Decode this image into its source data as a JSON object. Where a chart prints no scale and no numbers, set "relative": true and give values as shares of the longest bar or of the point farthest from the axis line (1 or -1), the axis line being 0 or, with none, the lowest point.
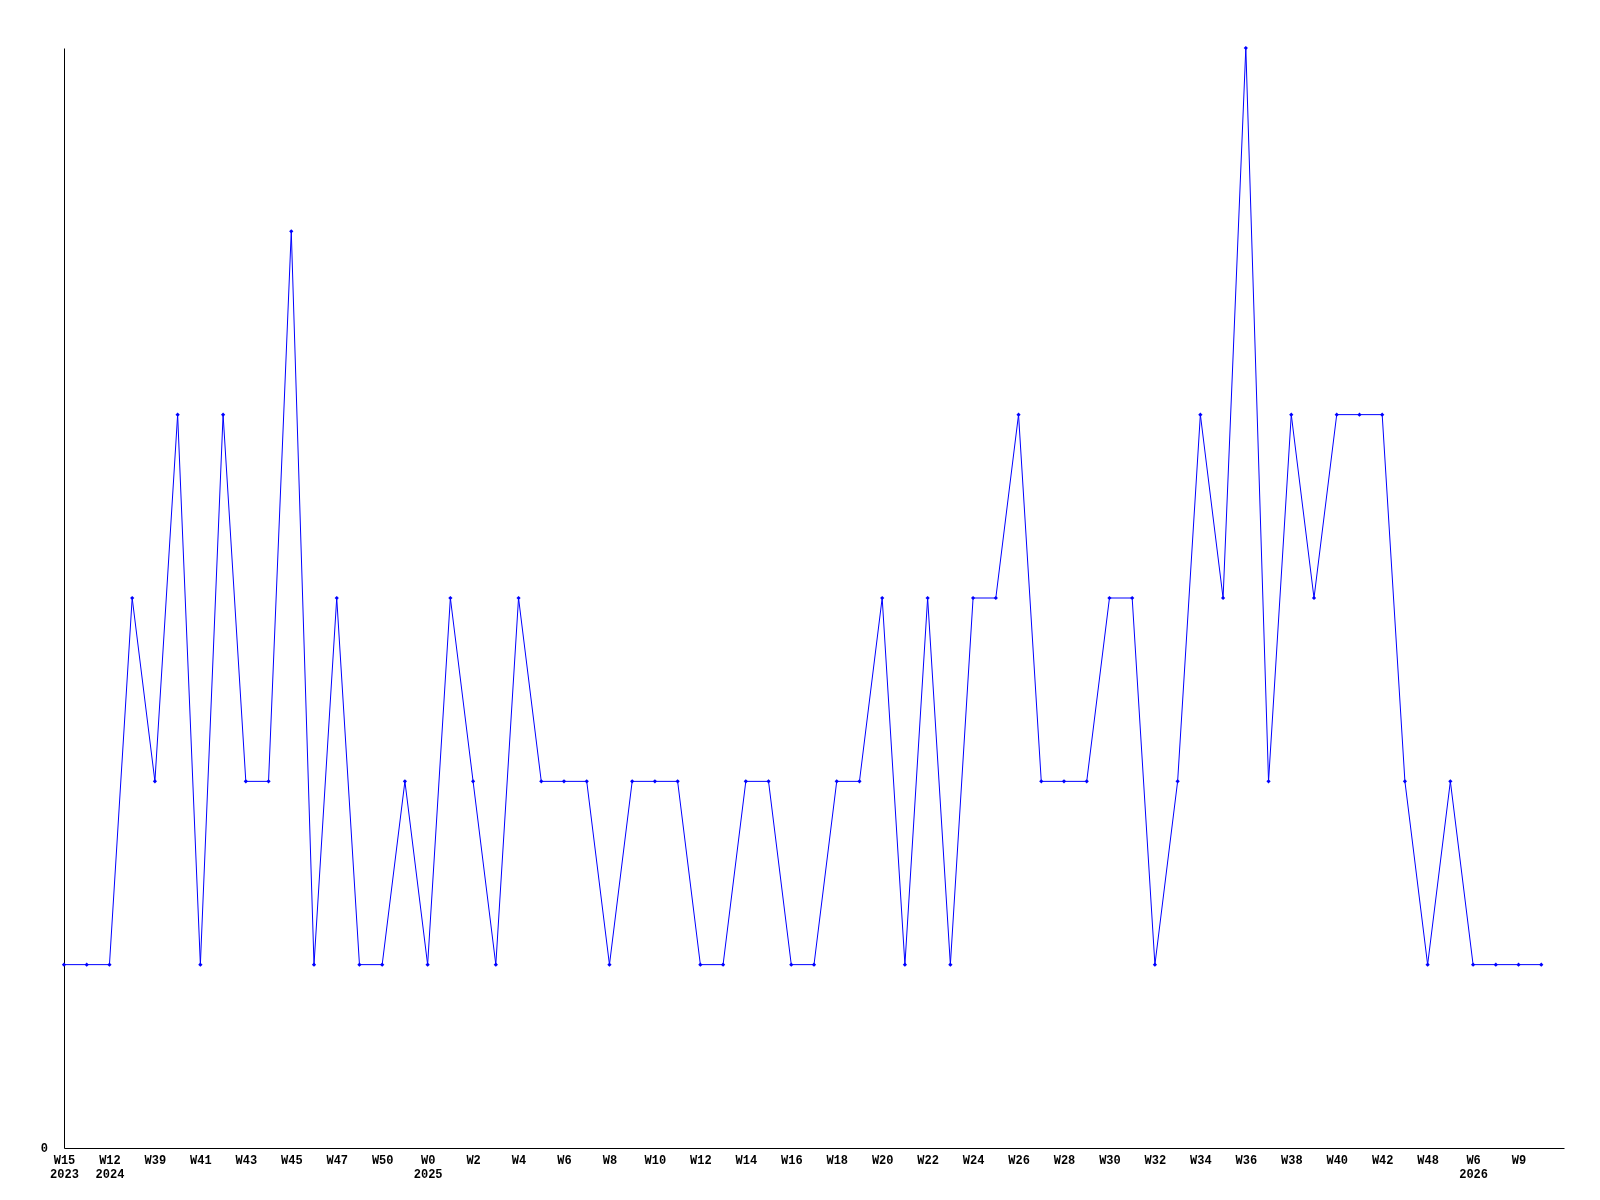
{
  "chart_data": {
    "type": "line",
    "relative": true,
    "color": "#0000ff",
    "marker": "diamond",
    "grid": false,
    "annotations": [
      "0"
    ],
    "categories": [
      "W15\n2023",
      null,
      "W12\n2024",
      null,
      "W39",
      null,
      "W41",
      null,
      "W43",
      null,
      "W45",
      null,
      "W47",
      null,
      "W50",
      null,
      "W0\n2025",
      null,
      "W2",
      null,
      "W4",
      null,
      "W6",
      null,
      "W8",
      null,
      "W10",
      null,
      "W12",
      null,
      "W14",
      null,
      "W16",
      null,
      "W18",
      null,
      "W20",
      null,
      "W22",
      null,
      "W24",
      null,
      "W26",
      null,
      "W28",
      null,
      "W30",
      null,
      "W32",
      null,
      "W34",
      null,
      "W36",
      null,
      "W38",
      null,
      "W40",
      null,
      "W42",
      null,
      "W48",
      null,
      "W6\n2026",
      null,
      "W9",
      null
    ],
    "values": [
      0.1667,
      0.1667,
      0.1667,
      0.5,
      0.3333,
      0.6667,
      0.1667,
      0.6667,
      0.3333,
      0.3333,
      0.8333,
      0.1667,
      0.5,
      0.1667,
      0.1667,
      0.3333,
      0.1667,
      0.5,
      0.3333,
      0.1667,
      0.5,
      0.3333,
      0.3333,
      0.3333,
      0.1667,
      0.3333,
      0.3333,
      0.3333,
      0.1667,
      0.1667,
      0.3333,
      0.3333,
      0.1667,
      0.1667,
      0.3333,
      0.3333,
      0.5,
      0.1667,
      0.5,
      0.1667,
      0.5,
      0.5,
      0.6667,
      0.3333,
      0.3333,
      0.3333,
      0.5,
      0.5,
      0.1667,
      0.3333,
      0.6667,
      0.5,
      1,
      0.3333,
      0.6667,
      0.5,
      0.6667,
      0.6667,
      0.6667,
      0.3333,
      0.1667,
      0.3333,
      0.1667,
      0.1667,
      0.1667,
      0.1667
    ]
  }
}
